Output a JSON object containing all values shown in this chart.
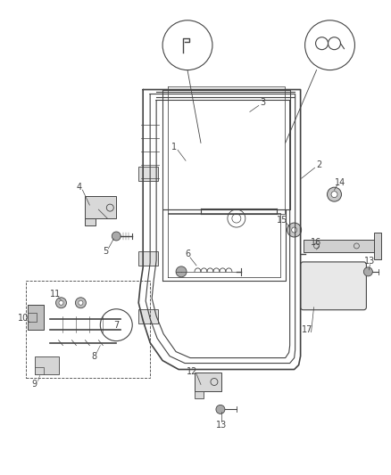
{
  "bg_color": "#ffffff",
  "fig_width": 4.38,
  "fig_height": 5.33,
  "dpi": 100,
  "line_color": "#444444",
  "gray_fill": "#cccccc",
  "dark_gray": "#888888"
}
